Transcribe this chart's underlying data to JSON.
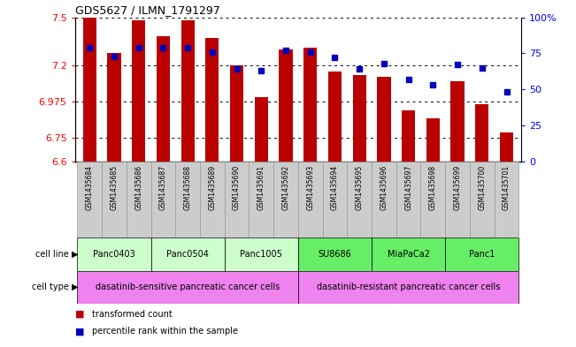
{
  "title": "GDS5627 / ILMN_1791297",
  "samples": [
    "GSM1435684",
    "GSM1435685",
    "GSM1435686",
    "GSM1435687",
    "GSM1435688",
    "GSM1435689",
    "GSM1435690",
    "GSM1435691",
    "GSM1435692",
    "GSM1435693",
    "GSM1435694",
    "GSM1435695",
    "GSM1435696",
    "GSM1435697",
    "GSM1435698",
    "GSM1435699",
    "GSM1435700",
    "GSM1435701"
  ],
  "transformed_count": [
    7.5,
    7.28,
    7.48,
    7.38,
    7.48,
    7.37,
    7.2,
    7.0,
    7.3,
    7.31,
    7.16,
    7.14,
    7.13,
    6.92,
    6.87,
    7.1,
    6.96,
    6.78
  ],
  "percentile_rank": [
    79,
    73,
    79,
    79,
    79,
    76,
    64,
    63,
    77,
    76,
    72,
    64,
    68,
    57,
    53,
    67,
    65,
    48
  ],
  "cell_lines": [
    {
      "label": "Panc0403",
      "start": 0,
      "end": 2,
      "color": "#ccffcc"
    },
    {
      "label": "Panc0504",
      "start": 3,
      "end": 5,
      "color": "#ccffcc"
    },
    {
      "label": "Panc1005",
      "start": 6,
      "end": 8,
      "color": "#ccffcc"
    },
    {
      "label": "SU8686",
      "start": 9,
      "end": 11,
      "color": "#66ee66"
    },
    {
      "label": "MiaPaCa2",
      "start": 12,
      "end": 14,
      "color": "#66ee66"
    },
    {
      "label": "Panc1",
      "start": 15,
      "end": 17,
      "color": "#66ee66"
    }
  ],
  "cell_types": [
    {
      "label": "dasatinib-sensitive pancreatic cancer cells",
      "start": 0,
      "end": 8,
      "color": "#ee82ee"
    },
    {
      "label": "dasatinib-resistant pancreatic cancer cells",
      "start": 9,
      "end": 17,
      "color": "#ee82ee"
    }
  ],
  "ylim": [
    6.6,
    7.5
  ],
  "yticks_left": [
    6.6,
    6.75,
    6.975,
    7.2,
    7.5
  ],
  "ytick_labels_left": [
    "6.6",
    "6.75",
    "6.975",
    "7.2",
    "7.5"
  ],
  "y2lim": [
    0,
    100
  ],
  "y2ticks": [
    0,
    25,
    50,
    75,
    100
  ],
  "y2tick_labels": [
    "0",
    "25",
    "50",
    "75",
    "100%"
  ],
  "bar_color": "#bb0000",
  "dot_color": "#0000bb",
  "bar_width": 0.55,
  "legend": [
    {
      "label": "transformed count",
      "color": "#bb0000"
    },
    {
      "label": "percentile rank within the sample",
      "color": "#0000bb"
    }
  ],
  "sample_label_bg": "#cccccc",
  "sample_label_border": "#999999"
}
